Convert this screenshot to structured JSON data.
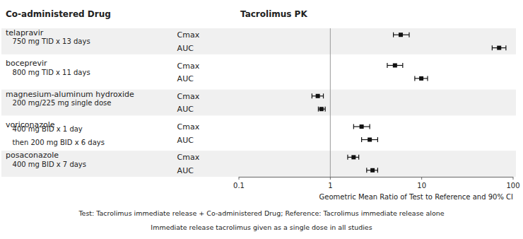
{
  "chart_data": {
    "type": "forest",
    "title": "Tacrolimus PK",
    "annotations": [
      "Co-administered Drug",
      "Test: Tacrolimus immediate release + Co-administered Drug; Reference: Tacrolimus immediate release alone",
      "Immediate release tacrolimus given as a single dose in all studies"
    ],
    "xlabel": "Geometric Mean Ratio of Test to Reference and 90% CI",
    "log": "x",
    "xlim": [
      0.1,
      100
    ],
    "xticks": [
      0.1,
      1,
      10,
      100
    ],
    "tick_labels": "x",
    "reference_line": 1.0,
    "color": "#111111",
    "marker": "square",
    "groups": [
      {
        "name": "telapravir",
        "dose": [
          "   750 mg TID x 13 days"
        ],
        "categories": [
          "Cmax",
          "AUC"
        ],
        "values": [
          5.9,
          70.3
        ],
        "lower": [
          4.9,
          59.0
        ],
        "upper": [
          7.3,
          83.5
        ]
      },
      {
        "name": "boceprevir",
        "dose": [
          "   800 mg TID x 11 days"
        ],
        "categories": [
          "Cmax",
          "AUC"
        ],
        "values": [
          5.1,
          9.9
        ],
        "lower": [
          4.2,
          8.4
        ],
        "upper": [
          6.2,
          11.6
        ]
      },
      {
        "name": "magnesium-aluminum hydroxide",
        "dose": [
          "   200 mg/225 mg single dose"
        ],
        "categories": [
          "Cmax",
          "AUC"
        ],
        "values": [
          0.73,
          0.8
        ],
        "lower": [
          0.63,
          0.74
        ],
        "upper": [
          0.84,
          0.88
        ]
      },
      {
        "name": "voriconazole",
        "dose": [
          "   400 mg BID x 1 day",
          "   then 200 mg BID x 6 days"
        ],
        "categories": [
          "Cmax",
          "AUC"
        ],
        "values": [
          2.2,
          2.7
        ],
        "lower": [
          1.8,
          2.2
        ],
        "upper": [
          2.7,
          3.3
        ]
      },
      {
        "name": "posaconazole",
        "dose": [
          "   400 mg BID x 7 days"
        ],
        "categories": [
          "Cmax",
          "AUC"
        ],
        "values": [
          1.8,
          2.9
        ],
        "lower": [
          1.55,
          2.5
        ],
        "upper": [
          2.05,
          3.3
        ]
      }
    ]
  }
}
